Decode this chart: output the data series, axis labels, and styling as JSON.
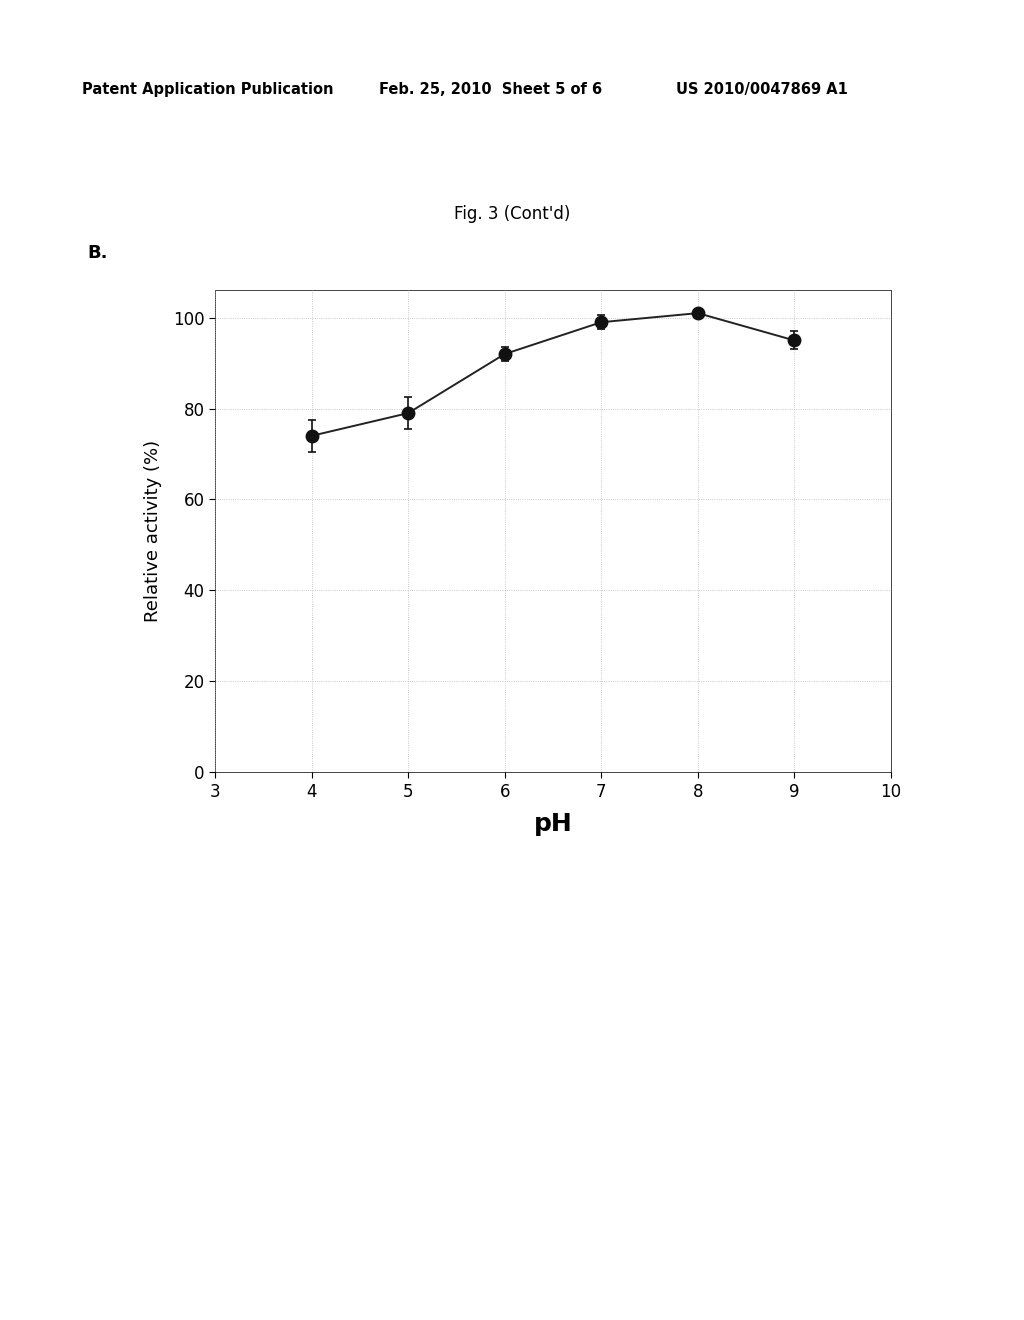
{
  "title_fig": "Fig. 3 (Cont'd)",
  "panel_label": "B.",
  "header_left": "Patent Application Publication",
  "header_mid": "Feb. 25, 2010  Sheet 5 of 6",
  "header_right": "US 2010/0047869 A1",
  "xlabel": "pH",
  "ylabel": "Relative activity (%)",
  "x_values": [
    4,
    5,
    6,
    7,
    8,
    9
  ],
  "y_values": [
    74,
    79,
    92,
    99,
    101,
    95
  ],
  "y_errors": [
    3.5,
    3.5,
    1.5,
    1.5,
    1.0,
    2.0
  ],
  "xlim": [
    3,
    10
  ],
  "ylim": [
    0,
    106
  ],
  "xticks": [
    3,
    4,
    5,
    6,
    7,
    8,
    9,
    10
  ],
  "yticks": [
    0,
    20,
    40,
    60,
    80,
    100
  ],
  "line_color": "#222222",
  "marker_color": "#111111",
  "marker_size": 9,
  "line_width": 1.4,
  "background_color": "#ffffff",
  "grid_style": "dotted",
  "grid_color": "#aaaaaa",
  "header_fontsize": 10.5,
  "title_fontsize": 12,
  "panel_fontsize": 13,
  "tick_fontsize": 12,
  "xlabel_fontsize": 18,
  "ylabel_fontsize": 13
}
